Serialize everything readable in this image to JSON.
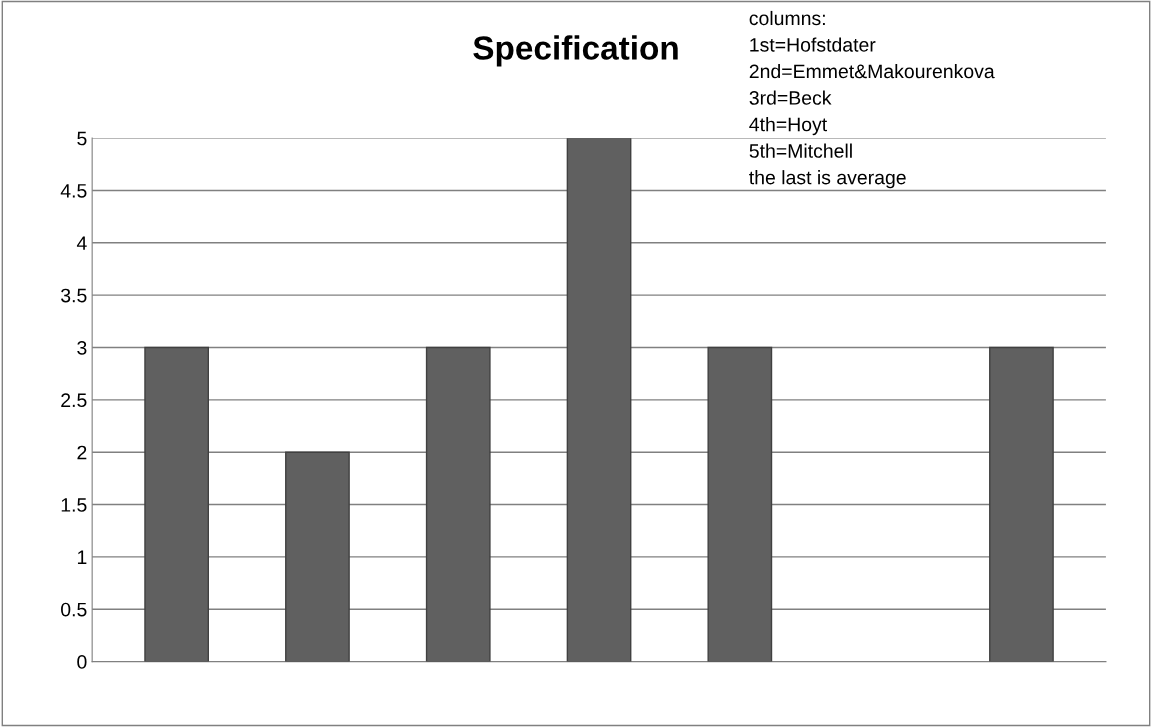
{
  "chart_data": {
    "type": "bar",
    "title": "Specification",
    "categories": [
      null,
      null,
      null,
      null,
      null,
      null,
      null
    ],
    "values": [
      3,
      2,
      3,
      5,
      3,
      null,
      3
    ],
    "color": "#606060",
    "ylim": [
      0,
      5
    ],
    "yticks": [
      0,
      0.5,
      1,
      1.5,
      2,
      2.5,
      3,
      3.5,
      4,
      4.5,
      5
    ],
    "grid": "y",
    "legend": false,
    "annotations": [
      "columns:",
      "1st=Hofstdater",
      "2nd=Emmet&Makourenkova",
      "3rd=Beck",
      "4th=Hoyt",
      "5th=Mitchell",
      "the last is average"
    ]
  }
}
